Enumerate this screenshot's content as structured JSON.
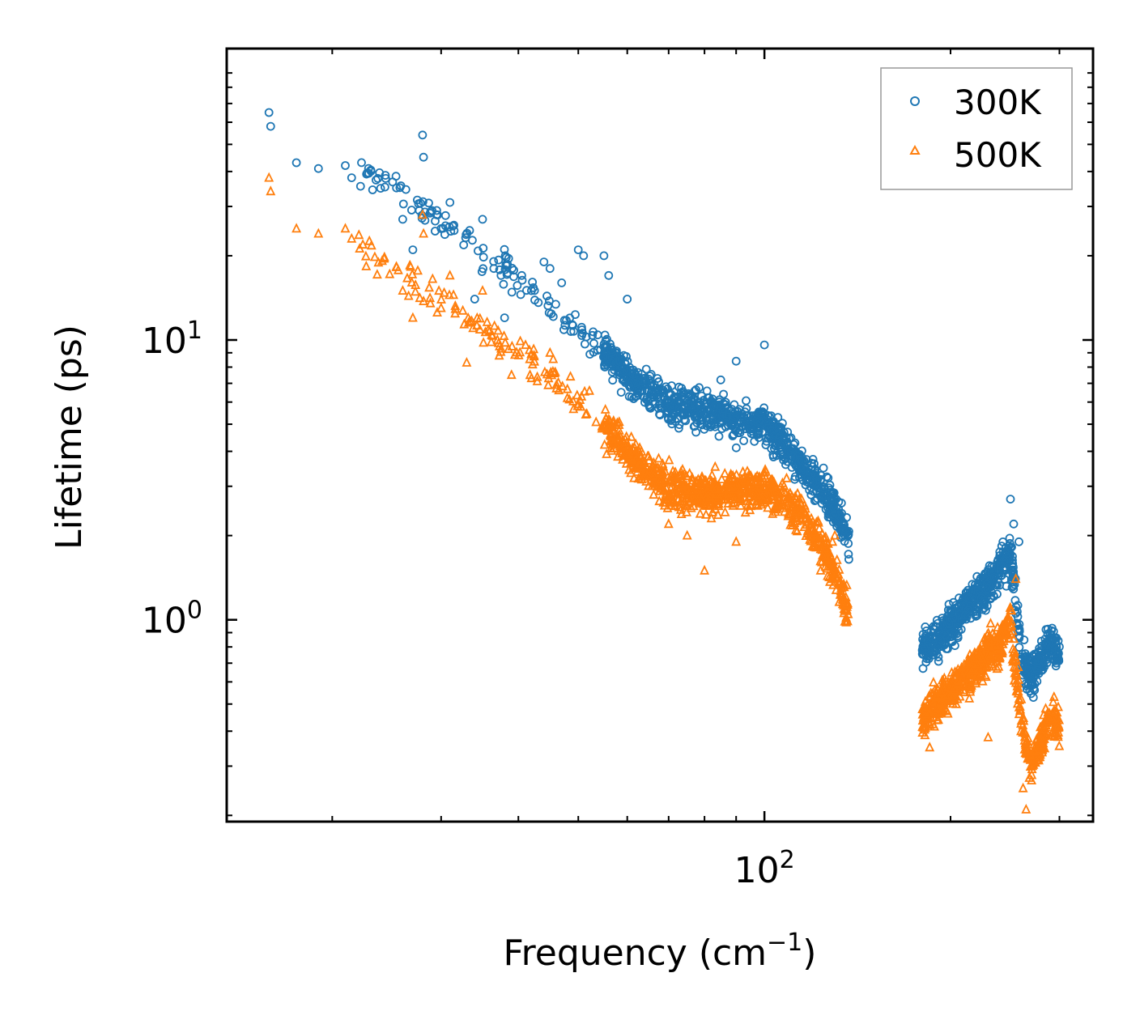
{
  "chart_data": {
    "type": "scatter",
    "title": "",
    "xlabel": "Frequency (cm",
    "xlabel_sup": "−1",
    "xlabel_close": ")",
    "ylabel": "Lifetime (ps)",
    "xscale": "log",
    "yscale": "log",
    "xlim": [
      13.5,
      340
    ],
    "ylim": [
      0.19,
      110
    ],
    "x_major_ticks": [
      {
        "value": 100,
        "base": "10",
        "exp": "2"
      }
    ],
    "y_major_ticks": [
      {
        "value": 1,
        "base": "10",
        "exp": "0"
      },
      {
        "value": 10,
        "base": "10",
        "exp": "1"
      }
    ],
    "x_minor_ticks": [
      20,
      30,
      40,
      50,
      60,
      70,
      80,
      90,
      200,
      300
    ],
    "y_minor_ticks": [
      0.2,
      0.3,
      0.4,
      0.5,
      0.6,
      0.7,
      0.8,
      0.9,
      2,
      3,
      4,
      5,
      6,
      7,
      8,
      9,
      20,
      30,
      40,
      50,
      60,
      70,
      80,
      90
    ],
    "legend": {
      "position": "top-right"
    },
    "series": [
      {
        "name": "300K",
        "marker": "circle",
        "color": "#1f77b4",
        "trend": [
          [
            16.0,
            62
          ],
          [
            20,
            48
          ],
          [
            25,
            36
          ],
          [
            30,
            26
          ],
          [
            35,
            20
          ],
          [
            40,
            17
          ],
          [
            45,
            13
          ],
          [
            50,
            11
          ],
          [
            55,
            9.2
          ],
          [
            60,
            7.5
          ],
          [
            65,
            6.6
          ],
          [
            70,
            6.0
          ],
          [
            80,
            5.6
          ],
          [
            90,
            5.2
          ],
          [
            100,
            4.9
          ],
          [
            110,
            4.0
          ],
          [
            120,
            3.2
          ],
          [
            130,
            2.5
          ],
          [
            136,
            2.0
          ],
          [
            180,
            0.78
          ],
          [
            200,
            0.95
          ],
          [
            220,
            1.2
          ],
          [
            240,
            1.5
          ],
          [
            250,
            1.8
          ],
          [
            260,
            0.75
          ],
          [
            270,
            0.62
          ],
          [
            290,
            0.85
          ],
          [
            300,
            0.75
          ]
        ],
        "points": [
          [
            15.8,
            65
          ],
          [
            15.9,
            58
          ],
          [
            17.5,
            43
          ],
          [
            19.0,
            41
          ],
          [
            21,
            42
          ],
          [
            21.5,
            38
          ],
          [
            26,
            27
          ],
          [
            27,
            21
          ],
          [
            28,
            54
          ],
          [
            28.1,
            45
          ],
          [
            29,
            29
          ],
          [
            30,
            25
          ],
          [
            31,
            31
          ],
          [
            34,
            14
          ],
          [
            35,
            27
          ],
          [
            36.5,
            18
          ],
          [
            37.5,
            17
          ],
          [
            38,
            12
          ],
          [
            40.5,
            17
          ],
          [
            42,
            15
          ],
          [
            44,
            19
          ],
          [
            45,
            18
          ],
          [
            47,
            16
          ],
          [
            50,
            21
          ],
          [
            51,
            20
          ],
          [
            55,
            20
          ],
          [
            56,
            17
          ],
          [
            60,
            14
          ],
          [
            100,
            9.6
          ],
          [
            90,
            8.4
          ],
          [
            85,
            7.2
          ],
          [
            250,
            2.7
          ],
          [
            253,
            2.2
          ],
          [
            258,
            1.9
          ]
        ]
      },
      {
        "name": "500K",
        "marker": "triangle",
        "color": "#ff7f0e",
        "trend": [
          [
            16.0,
            35
          ],
          [
            20,
            26
          ],
          [
            25,
            18
          ],
          [
            30,
            14
          ],
          [
            35,
            11
          ],
          [
            40,
            9.0
          ],
          [
            45,
            7.5
          ],
          [
            50,
            6.2
          ],
          [
            55,
            5.0
          ],
          [
            60,
            4.0
          ],
          [
            65,
            3.4
          ],
          [
            70,
            3.0
          ],
          [
            80,
            2.8
          ],
          [
            90,
            2.9
          ],
          [
            100,
            2.9
          ],
          [
            110,
            2.6
          ],
          [
            120,
            2.1
          ],
          [
            130,
            1.5
          ],
          [
            136,
            1.1
          ],
          [
            180,
            0.45
          ],
          [
            200,
            0.55
          ],
          [
            220,
            0.68
          ],
          [
            240,
            0.82
          ],
          [
            250,
            1.0
          ],
          [
            260,
            0.45
          ],
          [
            270,
            0.3
          ],
          [
            290,
            0.45
          ],
          [
            300,
            0.42
          ]
        ],
        "points": [
          [
            15.8,
            38
          ],
          [
            15.9,
            34
          ],
          [
            17.5,
            25
          ],
          [
            19.0,
            24
          ],
          [
            21,
            25
          ],
          [
            21.5,
            23
          ],
          [
            26,
            15
          ],
          [
            27,
            12
          ],
          [
            28,
            28
          ],
          [
            28.1,
            24
          ],
          [
            30,
            13
          ],
          [
            31,
            17
          ],
          [
            33,
            8.3
          ],
          [
            35,
            15
          ],
          [
            37,
            10
          ],
          [
            39,
            7.5
          ],
          [
            42,
            7.3
          ],
          [
            45,
            9
          ],
          [
            48,
            6.2
          ],
          [
            50,
            5.9
          ],
          [
            70,
            2.2
          ],
          [
            75,
            2.0
          ],
          [
            80,
            1.5
          ],
          [
            90,
            1.9
          ],
          [
            130,
            2.0
          ],
          [
            185,
            0.35
          ],
          [
            230,
            0.38
          ],
          [
            255,
            1.4
          ],
          [
            262,
            0.25
          ],
          [
            265,
            0.21
          ]
        ]
      }
    ]
  }
}
